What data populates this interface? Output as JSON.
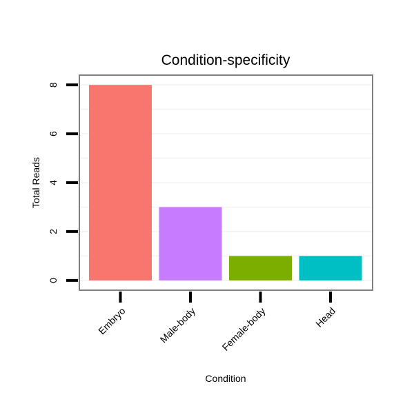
{
  "chart_data": {
    "type": "bar",
    "title": "Condition-specificity",
    "xlabel": "Condition",
    "ylabel": "Total Reads",
    "categories": [
      "Embryo",
      "Male-body",
      "Female-body",
      "Head"
    ],
    "values": [
      8,
      3,
      1,
      1
    ],
    "colors": [
      "#F8766D",
      "#C77CFF",
      "#7CAE00",
      "#00BFC4"
    ],
    "ylim": [
      -0.4,
      8.4
    ],
    "yticks": [
      0,
      2,
      4,
      6,
      8
    ],
    "minor_grid": [
      1,
      3,
      5,
      7
    ],
    "grid": true,
    "legend": "none"
  }
}
